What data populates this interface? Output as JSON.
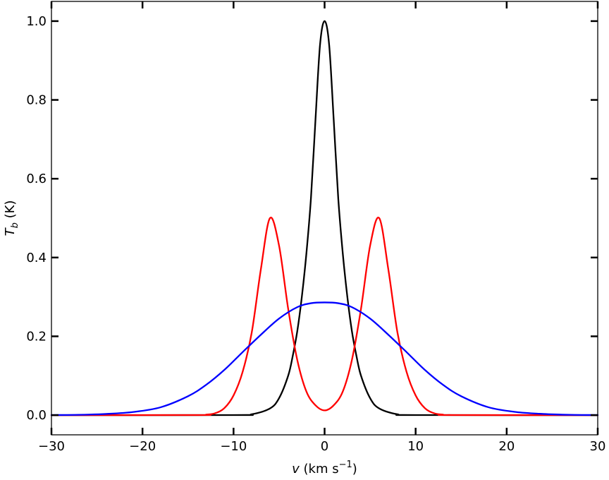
{
  "chart_data": {
    "type": "line",
    "title": "",
    "xlabel": "v (km s⁻¹)",
    "ylabel": "T_b (K)",
    "xlabel_parts": {
      "symbol": "v",
      "prefix": " (km s",
      "sup": "−1",
      "suffix": ")"
    },
    "ylabel_parts": {
      "symbol": "T",
      "sub": "b",
      "suffix": " (K)"
    },
    "xlim": [
      -30,
      30
    ],
    "ylim": [
      -0.05,
      1.05
    ],
    "xticks": [
      -30,
      -20,
      -10,
      0,
      10,
      20,
      30
    ],
    "xtick_labels": [
      "−30",
      "−20",
      "−10",
      "0",
      "10",
      "20",
      "30"
    ],
    "yticks": [
      0.0,
      0.2,
      0.4,
      0.6,
      0.8,
      1.0
    ],
    "ytick_labels": [
      "0.0",
      "0.2",
      "0.4",
      "0.6",
      "0.8",
      "1.0"
    ],
    "grid": false,
    "legend": "none",
    "series": [
      {
        "color": "#000000",
        "x": [
          -30,
          -10,
          -8,
          -6,
          -5,
          -4,
          -3.5,
          -3,
          -2.5,
          -2,
          -1.5,
          -1,
          -0.5,
          0,
          0.5,
          1,
          1.5,
          2,
          2.5,
          3,
          3.5,
          4,
          5,
          6,
          8,
          10,
          30
        ],
        "values": [
          0,
          0.0002,
          0.0022,
          0.017,
          0.043,
          0.1,
          0.15,
          0.213,
          0.3,
          0.41,
          0.55,
          0.75,
          0.94,
          1.0,
          0.94,
          0.75,
          0.55,
          0.41,
          0.3,
          0.213,
          0.15,
          0.1,
          0.043,
          0.017,
          0.0022,
          0.0002,
          0
        ]
      },
      {
        "color": "#ff0000",
        "x": [
          -30,
          -14,
          -13,
          -12,
          -11,
          -10,
          -9,
          -8,
          -7,
          -6,
          -5,
          -4,
          -3,
          -2,
          -1,
          0,
          1,
          2,
          3,
          4,
          5,
          6,
          7,
          8,
          9,
          10,
          11,
          12,
          13,
          14,
          30
        ],
        "values": [
          0,
          0.0002,
          0.0012,
          0.005,
          0.018,
          0.05,
          0.11,
          0.21,
          0.37,
          0.5,
          0.43,
          0.27,
          0.14,
          0.06,
          0.025,
          0.012,
          0.025,
          0.06,
          0.14,
          0.27,
          0.43,
          0.5,
          0.37,
          0.21,
          0.11,
          0.05,
          0.018,
          0.005,
          0.0012,
          0.0002,
          0
        ]
      },
      {
        "color": "#0000ff",
        "x": [
          -30,
          -27,
          -24,
          -21,
          -18,
          -15,
          -13,
          -11,
          -9,
          -7,
          -5,
          -3,
          -1.5,
          0,
          1.5,
          3,
          5,
          7,
          9,
          11,
          13,
          15,
          18,
          21,
          24,
          27,
          30
        ],
        "values": [
          0.0002,
          0.0008,
          0.003,
          0.008,
          0.02,
          0.048,
          0.077,
          0.115,
          0.16,
          0.204,
          0.245,
          0.274,
          0.284,
          0.286,
          0.284,
          0.274,
          0.245,
          0.204,
          0.16,
          0.115,
          0.077,
          0.048,
          0.02,
          0.008,
          0.003,
          0.0008,
          0.0002
        ]
      }
    ]
  }
}
